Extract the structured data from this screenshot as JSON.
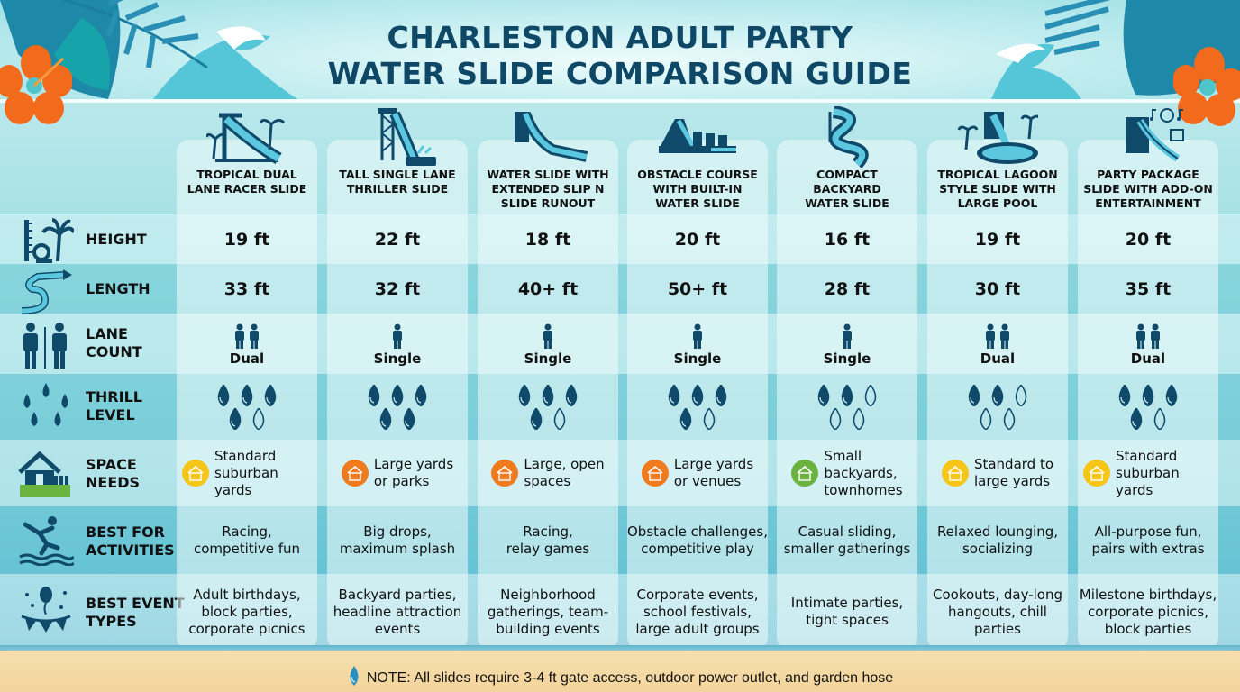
{
  "header": {
    "title_line1": "CHARLESTON ADULT PARTY",
    "title_line2": "WATER SLIDE COMPARISON GUIDE"
  },
  "colors": {
    "title": "#0f4866",
    "icon_dark": "#104a6a",
    "hibiscus": "#f26a1b",
    "badge_yellow": "#f5c518",
    "badge_orange": "#f07a1e",
    "badge_green": "#6ab33e",
    "sand": "#f4d8a2"
  },
  "row_labels": {
    "height": "HEIGHT",
    "length": "LENGTH",
    "lane_line1": "LANE",
    "lane_line2": "COUNT",
    "thrill_line1": "THRILL",
    "thrill_line2": "LEVEL",
    "space_line1": "SPACE",
    "space_line2": "NEEDS",
    "activities_line1": "BEST FOR",
    "activities_line2": "ACTIVITIES",
    "events_line1": "BEST EVENT",
    "events_line2": "TYPES"
  },
  "slides": [
    {
      "name_l1": "TROPICAL DUAL",
      "name_l2": "LANE RACER SLIDE",
      "name_l3": "",
      "icon": "tropical-dual-slide-icon",
      "height": "19 ft",
      "length": "33 ft",
      "lanes": "Dual",
      "lane_count": 2,
      "thrill": 4,
      "thrill_max": 5,
      "space_l1": "Standard",
      "space_l2": "suburban yards",
      "space_l3": "",
      "space_badge": "yellow",
      "activities_l1": "Racing,",
      "activities_l2": "competitive fun",
      "events_l1": "Adult birthdays,",
      "events_l2": "block parties,",
      "events_l3": "corporate picnics"
    },
    {
      "name_l1": "TALL SINGLE LANE",
      "name_l2": "THRILLER SLIDE",
      "name_l3": "",
      "icon": "tall-single-slide-icon",
      "height": "22 ft",
      "length": "32 ft",
      "lanes": "Single",
      "lane_count": 1,
      "thrill": 5,
      "thrill_max": 5,
      "space_l1": "Large yards",
      "space_l2": "or parks",
      "space_l3": "",
      "space_badge": "orange",
      "activities_l1": "Big drops,",
      "activities_l2": "maximum splash",
      "events_l1": "Backyard parties,",
      "events_l2": "headline attraction",
      "events_l3": "events"
    },
    {
      "name_l1": "WATER SLIDE WITH",
      "name_l2": "EXTENDED SLIP N",
      "name_l3": "SLIDE RUNOUT",
      "icon": "slip-n-slide-icon",
      "height": "18 ft",
      "length": "40+ ft",
      "lanes": "Single",
      "lane_count": 1,
      "thrill": 4,
      "thrill_max": 5,
      "space_l1": "Large, open",
      "space_l2": "spaces",
      "space_l3": "",
      "space_badge": "orange",
      "activities_l1": "Racing,",
      "activities_l2": "relay games",
      "events_l1": "Neighborhood",
      "events_l2": "gatherings, team-",
      "events_l3": "building events"
    },
    {
      "name_l1": "OBSTACLE COURSE",
      "name_l2": "WITH BUILT-IN",
      "name_l3": "WATER SLIDE",
      "icon": "obstacle-course-icon",
      "height": "20 ft",
      "length": "50+ ft",
      "lanes": "Single",
      "lane_count": 1,
      "thrill": 4,
      "thrill_max": 5,
      "space_l1": "Large yards",
      "space_l2": "or venues",
      "space_l3": "",
      "space_badge": "orange",
      "activities_l1": "Obstacle challenges,",
      "activities_l2": "competitive play",
      "events_l1": "Corporate events,",
      "events_l2": "school festivals,",
      "events_l3": "large adult groups"
    },
    {
      "name_l1": "COMPACT",
      "name_l2": "BACKYARD",
      "name_l3": "WATER SLIDE",
      "icon": "compact-spiral-slide-icon",
      "height": "16 ft",
      "length": "28 ft",
      "lanes": "Single",
      "lane_count": 1,
      "thrill": 2,
      "thrill_max": 5,
      "space_l1": "Small",
      "space_l2": "backyards,",
      "space_l3": "townhomes",
      "space_badge": "green",
      "activities_l1": "Casual sliding,",
      "activities_l2": "smaller gatherings",
      "events_l1": "Intimate parties,",
      "events_l2": "tight spaces",
      "events_l3": ""
    },
    {
      "name_l1": "TROPICAL LAGOON",
      "name_l2": "STYLE SLIDE WITH",
      "name_l3": "LARGE POOL",
      "icon": "lagoon-pool-slide-icon",
      "height": "19 ft",
      "length": "30 ft",
      "lanes": "Dual",
      "lane_count": 2,
      "thrill": 2,
      "thrill_max": 5,
      "space_l1": "Standard to",
      "space_l2": "large yards",
      "space_l3": "",
      "space_badge": "yellow",
      "activities_l1": "Relaxed lounging,",
      "activities_l2": "socializing",
      "events_l1": "Cookouts, day-long",
      "events_l2": "hangouts, chill",
      "events_l3": "parties"
    },
    {
      "name_l1": "PARTY PACKAGE",
      "name_l2": "SLIDE WITH ADD-ON",
      "name_l3": "ENTERTAINMENT",
      "icon": "party-package-slide-icon",
      "height": "20 ft",
      "length": "35 ft",
      "lanes": "Dual",
      "lane_count": 2,
      "thrill": 4,
      "thrill_max": 5,
      "space_l1": "Standard",
      "space_l2": "suburban yards",
      "space_l3": "",
      "space_badge": "yellow",
      "activities_l1": "All-purpose fun,",
      "activities_l2": "pairs with extras",
      "events_l1": "Milestone birthdays,",
      "events_l2": "corporate picnics,",
      "events_l3": "block parties"
    }
  ],
  "footer": {
    "note": "NOTE: All slides require 3-4 ft gate access, outdoor power outlet, and garden hose",
    "icon": "water-drop-icon"
  },
  "chart_data": {
    "type": "table",
    "title": "CHARLESTON ADULT PARTY WATER SLIDE COMPARISON GUIDE",
    "columns": [
      "Tropical Dual Lane Racer Slide",
      "Tall Single Lane Thriller Slide",
      "Water Slide with Extended Slip N Slide Runout",
      "Obstacle Course with Built-in Water Slide",
      "Compact Backyard Water Slide",
      "Tropical Lagoon Style Slide with Large Pool",
      "Party Package Slide with Add-on Entertainment"
    ],
    "rows": {
      "Height": [
        "19 ft",
        "22 ft",
        "18 ft",
        "20 ft",
        "16 ft",
        "19 ft",
        "20 ft"
      ],
      "Length": [
        "33 ft",
        "32 ft",
        "40+ ft",
        "50+ ft",
        "28 ft",
        "30 ft",
        "35 ft"
      ],
      "Lane Count": [
        "Dual",
        "Single",
        "Single",
        "Single",
        "Single",
        "Dual",
        "Dual"
      ],
      "Thrill Level (of 5)": [
        4,
        5,
        4,
        4,
        2,
        2,
        4
      ],
      "Space Needs": [
        "Standard suburban yards",
        "Large yards or parks",
        "Large, open spaces",
        "Large yards or venues",
        "Small backyards, townhomes",
        "Standard to large yards",
        "Standard suburban yards"
      ],
      "Best For Activities": [
        "Racing, competitive fun",
        "Big drops, maximum splash",
        "Racing, relay games",
        "Obstacle challenges, competitive play",
        "Casual sliding, smaller gatherings",
        "Relaxed lounging, socializing",
        "All-purpose fun, pairs with extras"
      ],
      "Best Event Types": [
        "Adult birthdays, block parties, corporate picnics",
        "Backyard parties, headline attraction events",
        "Neighborhood gatherings, team-building events",
        "Corporate events, school festivals, large adult groups",
        "Intimate parties, tight spaces",
        "Cookouts, day-long hangouts, chill parties",
        "Milestone birthdays, corporate picnics, block parties"
      ]
    }
  }
}
